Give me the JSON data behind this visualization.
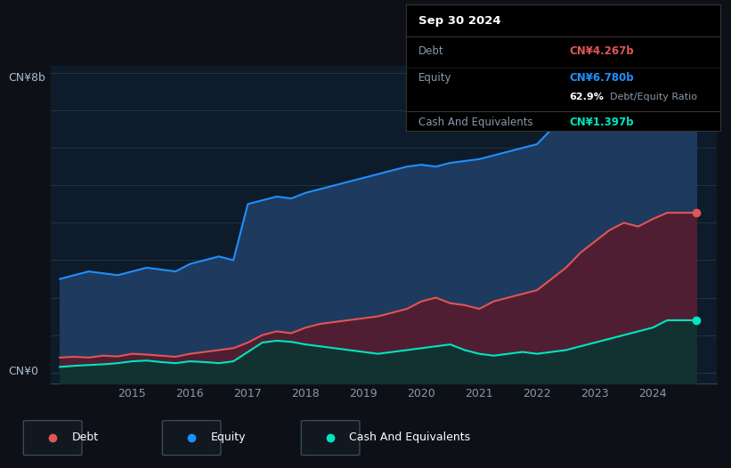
{
  "bg_color": "#0d1117",
  "chart_bg": "#0d1b2a",
  "ylabel_text": "CN¥8b",
  "ylabel2_text": "CN¥0",
  "y_max": 8.0,
  "y_min": -0.3,
  "equity_color": "#1e90ff",
  "debt_color": "#e05555",
  "cash_color": "#00e5c0",
  "equity_fill": "#1e3a5f",
  "debt_fill": "#5a1a2a",
  "cash_fill": "#0a3530",
  "tooltip_title": "Sep 30 2024",
  "tooltip_debt_label": "Debt",
  "tooltip_debt_value": "CN¥4.267b",
  "tooltip_equity_label": "Equity",
  "tooltip_equity_value": "CN¥6.780b",
  "tooltip_ratio": "62.9%",
  "tooltip_ratio_label": "Debt/Equity Ratio",
  "tooltip_cash_label": "Cash And Equivalents",
  "tooltip_cash_value": "CN¥1.397b",
  "legend_debt": "Debt",
  "legend_equity": "Equity",
  "legend_cash": "Cash And Equivalents",
  "years": [
    2013.75,
    2014.0,
    2014.25,
    2014.5,
    2014.75,
    2015.0,
    2015.25,
    2015.5,
    2015.75,
    2016.0,
    2016.25,
    2016.5,
    2016.75,
    2017.0,
    2017.25,
    2017.5,
    2017.75,
    2018.0,
    2018.25,
    2018.5,
    2018.75,
    2019.0,
    2019.25,
    2019.5,
    2019.75,
    2020.0,
    2020.25,
    2020.5,
    2020.75,
    2021.0,
    2021.25,
    2021.5,
    2021.75,
    2022.0,
    2022.25,
    2022.5,
    2022.75,
    2023.0,
    2023.25,
    2023.5,
    2023.75,
    2024.0,
    2024.25,
    2024.5,
    2024.75
  ],
  "equity": [
    2.5,
    2.6,
    2.7,
    2.65,
    2.6,
    2.7,
    2.8,
    2.75,
    2.7,
    2.9,
    3.0,
    3.1,
    3.0,
    4.5,
    4.6,
    4.7,
    4.65,
    4.8,
    4.9,
    5.0,
    5.1,
    5.2,
    5.3,
    5.4,
    5.5,
    5.55,
    5.5,
    5.6,
    5.65,
    5.7,
    5.8,
    5.9,
    6.0,
    6.1,
    6.5,
    6.9,
    7.2,
    7.4,
    7.3,
    7.1,
    6.9,
    6.85,
    6.78,
    6.78,
    6.78
  ],
  "debt": [
    0.4,
    0.42,
    0.4,
    0.45,
    0.43,
    0.5,
    0.48,
    0.45,
    0.42,
    0.5,
    0.55,
    0.6,
    0.65,
    0.8,
    1.0,
    1.1,
    1.05,
    1.2,
    1.3,
    1.35,
    1.4,
    1.45,
    1.5,
    1.6,
    1.7,
    1.9,
    2.0,
    1.85,
    1.8,
    1.7,
    1.9,
    2.0,
    2.1,
    2.2,
    2.5,
    2.8,
    3.2,
    3.5,
    3.8,
    4.0,
    3.9,
    4.1,
    4.267,
    4.267,
    4.267
  ],
  "cash": [
    0.15,
    0.18,
    0.2,
    0.22,
    0.25,
    0.3,
    0.32,
    0.28,
    0.25,
    0.3,
    0.28,
    0.25,
    0.3,
    0.55,
    0.8,
    0.85,
    0.82,
    0.75,
    0.7,
    0.65,
    0.6,
    0.55,
    0.5,
    0.55,
    0.6,
    0.65,
    0.7,
    0.75,
    0.6,
    0.5,
    0.45,
    0.5,
    0.55,
    0.5,
    0.55,
    0.6,
    0.7,
    0.8,
    0.9,
    1.0,
    1.1,
    1.2,
    1.397,
    1.397,
    1.397
  ]
}
